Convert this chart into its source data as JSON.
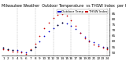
{
  "title": "Milwaukee Weather  Outdoor Temperature  vs THSW Index  per Hour  (24 Hours)",
  "background_color": "#ffffff",
  "grid_color": "#aaaaaa",
  "temp_data": [
    [
      1,
      54
    ],
    [
      2,
      53
    ],
    [
      3,
      52
    ],
    [
      4,
      52
    ],
    [
      5,
      51
    ],
    [
      6,
      50
    ],
    [
      7,
      52
    ],
    [
      8,
      55
    ],
    [
      9,
      60
    ],
    [
      10,
      65
    ],
    [
      11,
      69
    ],
    [
      12,
      72
    ],
    [
      13,
      75
    ],
    [
      14,
      77
    ],
    [
      15,
      76
    ],
    [
      16,
      74
    ],
    [
      17,
      71
    ],
    [
      18,
      68
    ],
    [
      19,
      64
    ],
    [
      20,
      61
    ],
    [
      21,
      59
    ],
    [
      22,
      57
    ],
    [
      23,
      55
    ],
    [
      24,
      54
    ]
  ],
  "thsw_data": [
    [
      1,
      53
    ],
    [
      2,
      52
    ],
    [
      3,
      51
    ],
    [
      4,
      51
    ],
    [
      5,
      50
    ],
    [
      6,
      49
    ],
    [
      7,
      53
    ],
    [
      8,
      58
    ],
    [
      9,
      65
    ],
    [
      10,
      72
    ],
    [
      11,
      77
    ],
    [
      12,
      81
    ],
    [
      13,
      84
    ],
    [
      14,
      85
    ],
    [
      15,
      83
    ],
    [
      16,
      79
    ],
    [
      17,
      74
    ],
    [
      18,
      68
    ],
    [
      19,
      63
    ],
    [
      20,
      60
    ],
    [
      21,
      57
    ],
    [
      22,
      56
    ],
    [
      23,
      54
    ],
    [
      24,
      53
    ]
  ],
  "black_data": [
    [
      1,
      54
    ],
    [
      2,
      53
    ],
    [
      3,
      52
    ],
    [
      7,
      52
    ],
    [
      8,
      55
    ],
    [
      13,
      75
    ],
    [
      14,
      77
    ],
    [
      24,
      54
    ]
  ],
  "outdoor_temp_color": "#0000cc",
  "thsw_color": "#cc0000",
  "black_color": "#000000",
  "dot_size": 1.5,
  "ylim": [
    47,
    90
  ],
  "yticks": [
    50,
    55,
    60,
    65,
    70,
    75,
    80,
    85
  ],
  "xtick_labels": [
    "1",
    "2",
    "3",
    "4",
    "5",
    "6",
    "7",
    "8",
    "9",
    "10",
    "11",
    "12",
    "13",
    "14",
    "15",
    "16",
    "17",
    "18",
    "19",
    "20",
    "21",
    "22",
    "23",
    "24"
  ],
  "legend_temp_label": "Outdoor Temp",
  "legend_thsw_label": "THSW Index",
  "title_fontsize": 3.5,
  "tick_fontsize": 3.0,
  "legend_fontsize": 2.8
}
